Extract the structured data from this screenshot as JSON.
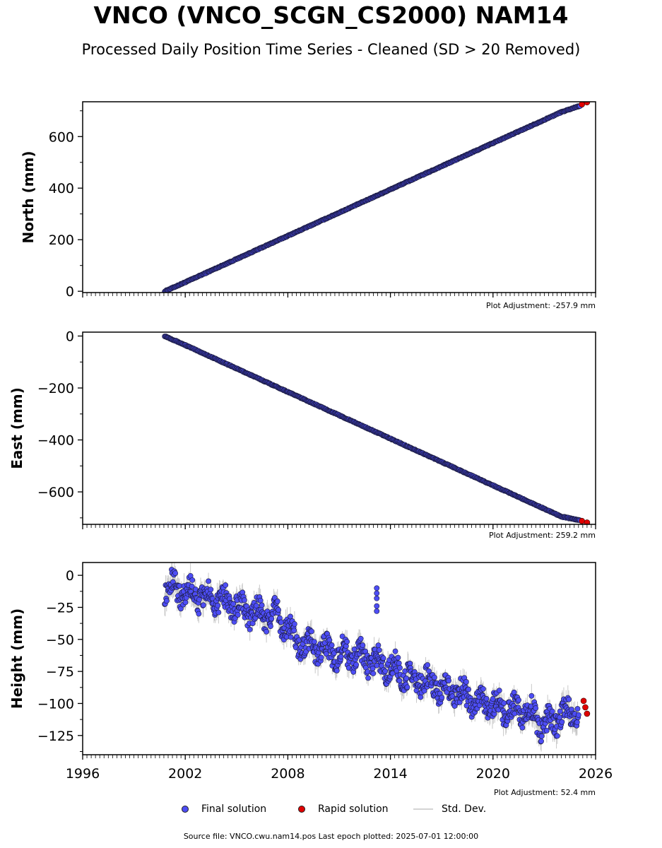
{
  "title": "VNCO (VNCO_SCGN_CS2000) NAM14",
  "subtitle": "Processed Daily Position Time Series - Cleaned (SD > 20 Removed)",
  "legend": {
    "final": "Final solution",
    "rapid": "Rapid solution",
    "std": "Std. Dev."
  },
  "colors": {
    "final": "#4d4df5",
    "rapid": "#e00000",
    "std": "#c8c8c8",
    "edge": "#1a1a3a"
  },
  "footer": "Source file: VNCO.cwu.nam14.pos  Last epoch plotted: 2025-07-01 12:00:00",
  "chart_data": [
    {
      "type": "scatter",
      "ylabel": "North (mm)",
      "adjustment": "Plot Adjustment: -257.9 mm",
      "xlim": [
        1996,
        2026
      ],
      "ylim": [
        -5,
        735
      ],
      "yticks": [
        0,
        200,
        400,
        600
      ],
      "ytick_labels": [
        "0",
        "200",
        "400",
        "600"
      ],
      "show_xtick_labels": false,
      "series": [
        {
          "role": "final",
          "x": [
            2000.8,
            2002,
            2004,
            2006,
            2008,
            2010,
            2012,
            2014,
            2016,
            2018,
            2020,
            2022,
            2024,
            2025.1
          ],
          "y": [
            0,
            35,
            95,
            155,
            215,
            275,
            335,
            395,
            455,
            515,
            575,
            635,
            695,
            720
          ]
        },
        {
          "role": "rapid",
          "x": [
            2025.2,
            2025.5
          ],
          "y": [
            725,
            733
          ]
        }
      ]
    },
    {
      "type": "scatter",
      "ylabel": "East (mm)",
      "adjustment": "Plot Adjustment: 259.2 mm",
      "xlim": [
        1996,
        2026
      ],
      "ylim": [
        -725,
        15
      ],
      "yticks": [
        0,
        -200,
        -400,
        -600
      ],
      "ytick_labels": [
        "0",
        "−200",
        "−400",
        "−600"
      ],
      "show_xtick_labels": false,
      "series": [
        {
          "role": "final",
          "x": [
            2000.8,
            2002,
            2004,
            2006,
            2008,
            2010,
            2012,
            2014,
            2016,
            2018,
            2020,
            2022,
            2024,
            2025.1
          ],
          "y": [
            0,
            -35,
            -95,
            -155,
            -215,
            -275,
            -335,
            -395,
            -455,
            -515,
            -575,
            -635,
            -695,
            -710
          ]
        },
        {
          "role": "rapid",
          "x": [
            2025.2,
            2025.5
          ],
          "y": [
            -712,
            -718
          ]
        }
      ]
    },
    {
      "type": "scatter",
      "ylabel": "Height (mm)",
      "adjustment": "Plot Adjustment: 52.4 mm",
      "xlim": [
        1996,
        2026
      ],
      "ylim": [
        -140,
        10
      ],
      "yticks": [
        0,
        -25,
        -50,
        -75,
        -100,
        -125
      ],
      "ytick_labels": [
        "0",
        "−25",
        "−50",
        "−75",
        "−100",
        "−125"
      ],
      "show_xtick_labels": true,
      "xticks": [
        1996,
        2002,
        2008,
        2014,
        2020,
        2026
      ],
      "xtick_labels": [
        "1996",
        "2002",
        "2008",
        "2014",
        "2020",
        "2026"
      ],
      "series": [
        {
          "role": "final",
          "x": [
            2000.8,
            2001.5,
            2002.5,
            2003.5,
            2004.5,
            2005.5,
            2006.5,
            2007.5,
            2008.3,
            2009,
            2010,
            2011,
            2012,
            2013,
            2014,
            2015,
            2016,
            2017,
            2018,
            2019,
            2020,
            2021,
            2022,
            2023,
            2024,
            2025
          ],
          "y": [
            -8,
            -10,
            -15,
            -18,
            -22,
            -28,
            -30,
            -32,
            -48,
            -55,
            -58,
            -62,
            -62,
            -68,
            -72,
            -78,
            -82,
            -88,
            -92,
            -98,
            -102,
            -105,
            -105,
            -118,
            -110,
            -105
          ]
        },
        {
          "role": "final-outliers",
          "x": [
            2013.2,
            2013.2,
            2013.2,
            2013.2,
            2013.2
          ],
          "y": [
            -10,
            -14,
            -18,
            -24,
            -28
          ]
        },
        {
          "role": "rapid",
          "x": [
            2025.3,
            2025.4,
            2025.5
          ],
          "y": [
            -98,
            -103,
            -108
          ]
        }
      ]
    }
  ]
}
